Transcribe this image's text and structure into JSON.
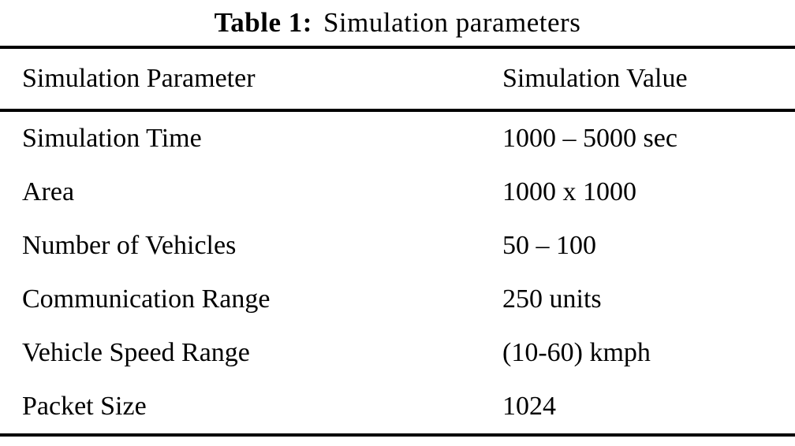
{
  "caption": {
    "label": "Table 1:",
    "text": "Simulation parameters"
  },
  "table": {
    "headers": {
      "parameter": "Simulation Parameter",
      "value": "Simulation Value"
    },
    "rows": [
      {
        "parameter": "Simulation Time",
        "value": "1000 – 5000 sec"
      },
      {
        "parameter": "Area",
        "value": "1000 x 1000"
      },
      {
        "parameter": "Number of Vehicles",
        "value": "50 – 100"
      },
      {
        "parameter": "Communication Range",
        "value": "250 units"
      },
      {
        "parameter": "Vehicle Speed Range",
        "value": "(10-60) kmph"
      },
      {
        "parameter": "Packet Size",
        "value": "1024"
      }
    ]
  }
}
